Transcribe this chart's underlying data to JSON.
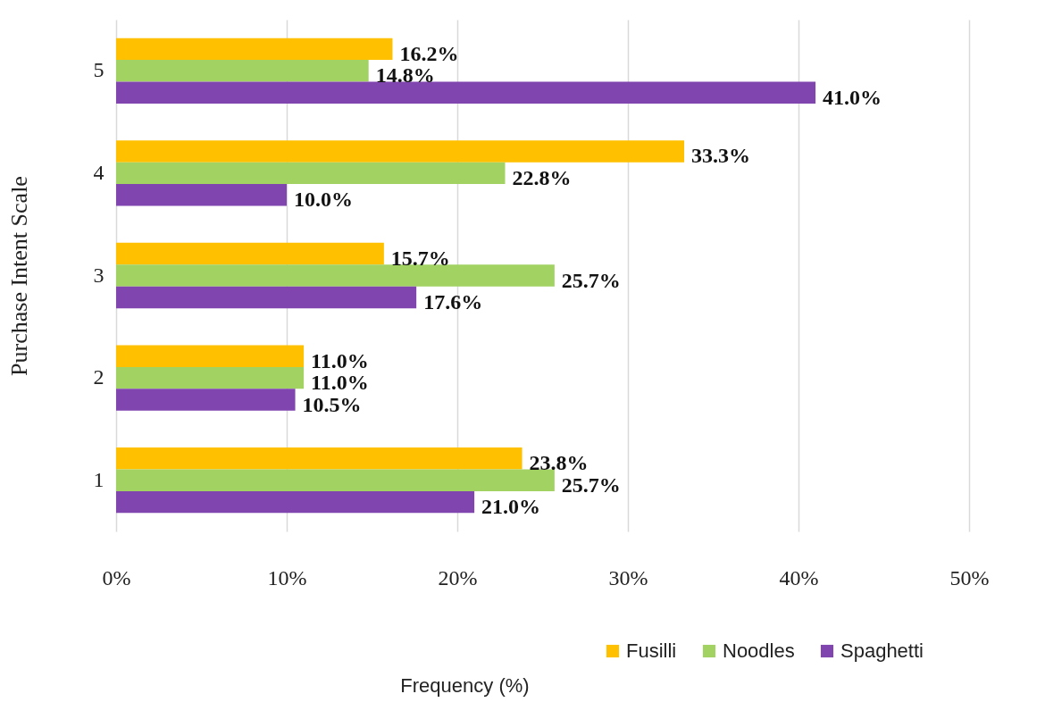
{
  "chart_data": {
    "type": "bar",
    "orientation": "horizontal",
    "xlabel": "Frequency (%)",
    "ylabel": "Purchase Intent Scale",
    "categories": [
      "5",
      "4",
      "3",
      "2",
      "1"
    ],
    "series": [
      {
        "name": "Fusilli",
        "color": "#ffc000",
        "values": [
          16.2,
          33.3,
          15.7,
          11.0,
          23.8
        ],
        "value_labels": [
          "16.2%",
          "33.3%",
          "15.7%",
          "11.0%",
          "23.8%"
        ]
      },
      {
        "name": "Noodles",
        "color": "#a1d262",
        "values": [
          14.8,
          22.8,
          25.7,
          11.0,
          25.7
        ],
        "value_labels": [
          "14.8%",
          "22.8%",
          "25.7%",
          "11.0%",
          "25.7%"
        ]
      },
      {
        "name": "Spaghetti",
        "color": "#8145b0",
        "values": [
          41.0,
          10.0,
          17.6,
          10.5,
          21.0
        ],
        "value_labels": [
          "41.0%",
          "10.0%",
          "17.6%",
          "10.5%",
          "21.0%"
        ]
      }
    ],
    "xlim": [
      0,
      50
    ],
    "xticks": [
      {
        "value": 0,
        "label": "0%"
      },
      {
        "value": 10,
        "label": "10%"
      },
      {
        "value": 20,
        "label": "20%"
      },
      {
        "value": 30,
        "label": "30%"
      },
      {
        "value": 40,
        "label": "40%"
      },
      {
        "value": 50,
        "label": "50%"
      }
    ],
    "grid": "x",
    "legend": "bottom right"
  }
}
